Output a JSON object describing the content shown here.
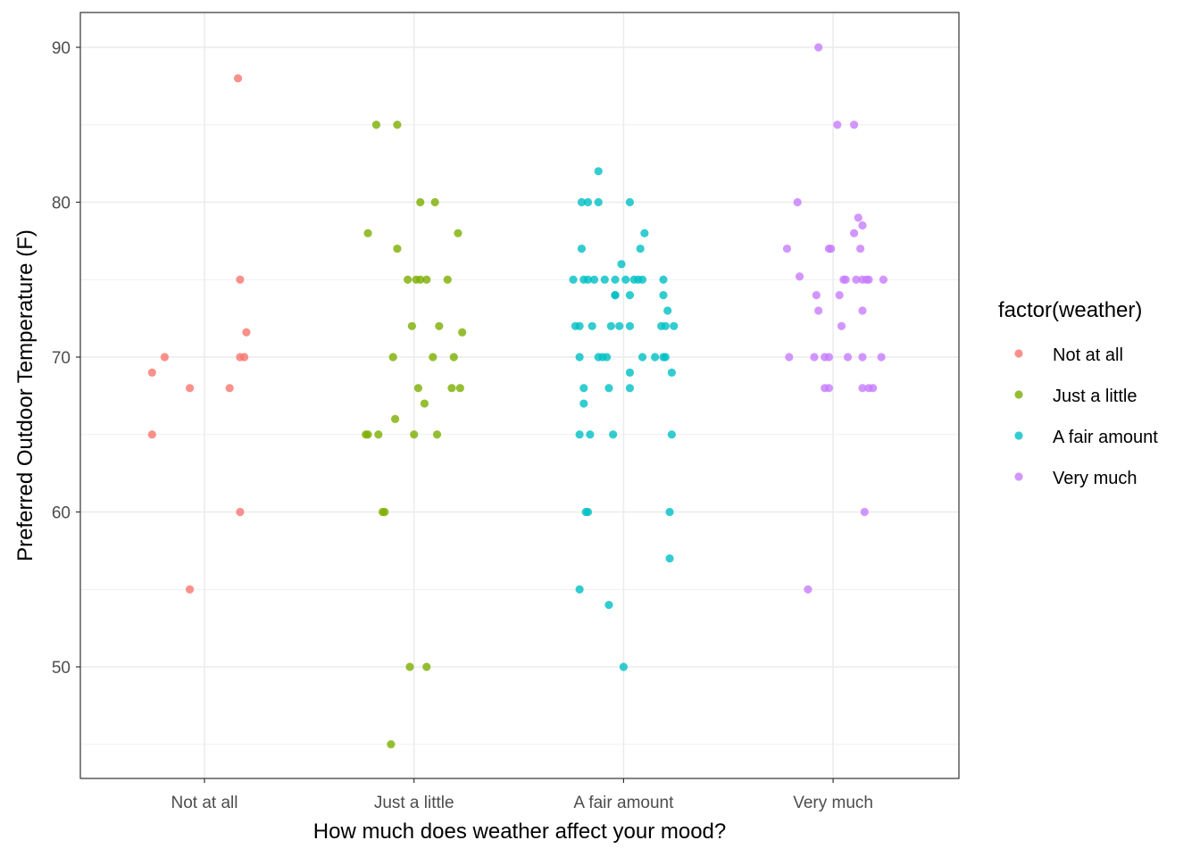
{
  "chart_data": {
    "type": "scatter",
    "subtype": "jitter",
    "title": "",
    "xlabel": "How much does weather affect your mood?",
    "ylabel": "Preferred Outdoor Temperature (F)",
    "categories": [
      "Not at all",
      "Just a little",
      "A fair amount",
      "Very much"
    ],
    "ylim": [
      42.5,
      92.3
    ],
    "yticks": [
      50,
      60,
      70,
      80,
      90
    ],
    "grid": true,
    "legend": {
      "title": "factor(weather)",
      "position": "right",
      "entries": [
        "Not at all",
        "Just a little",
        "A fair amount",
        "Very much"
      ]
    },
    "colors": {
      "Not at all": "#F8766D",
      "Just a little": "#7CAE00",
      "A fair amount": "#00BFC4",
      "Very much": "#C77CFF"
    },
    "series": [
      {
        "name": "Not at all",
        "jitter": [
          0.16,
          0.17,
          0.2,
          0.17,
          0.19,
          -0.19,
          -0.25,
          -0.07,
          0.12,
          -0.25,
          0.17,
          -0.07
        ],
        "values": [
          88,
          75,
          71.6,
          70,
          70,
          70,
          69,
          68,
          68,
          65,
          60,
          55
        ]
      },
      {
        "name": "Just a little",
        "jitter": [
          -0.18,
          -0.08,
          0.03,
          0.1,
          -0.22,
          0.21,
          -0.08,
          -0.03,
          0.01,
          0.03,
          0.06,
          0.16,
          -0.01,
          0.12,
          0.23,
          -0.1,
          0.09,
          0.19,
          0.02,
          0.18,
          0.22,
          0.05,
          -0.09,
          -0.23,
          -0.22,
          -0.17,
          0.0,
          0.11,
          -0.15,
          -0.14,
          -0.02,
          0.06,
          -0.11
        ],
        "values": [
          85,
          85,
          80,
          80,
          78,
          78,
          77,
          75,
          75,
          75,
          75,
          75,
          72,
          72,
          71.6,
          70,
          70,
          70,
          68,
          68,
          68,
          67,
          66,
          65,
          65,
          65,
          65,
          65,
          60,
          60,
          50,
          50,
          45
        ]
      },
      {
        "name": "A fair amount",
        "jitter": [
          -0.12,
          -0.2,
          -0.17,
          -0.12,
          0.03,
          0.1,
          -0.2,
          0.08,
          -0.01,
          -0.24,
          -0.19,
          -0.17,
          -0.14,
          -0.09,
          -0.04,
          0.01,
          0.05,
          0.07,
          0.09,
          0.19,
          -0.04,
          -0.04,
          0.03,
          0.19,
          0.21,
          -0.23,
          -0.21,
          -0.15,
          -0.06,
          -0.02,
          0.03,
          0.18,
          0.2,
          0.24,
          -0.21,
          -0.12,
          -0.1,
          -0.08,
          0.09,
          0.15,
          0.19,
          0.2,
          0.03,
          0.23,
          -0.19,
          -0.07,
          0.03,
          -0.19,
          -0.21,
          -0.16,
          -0.05,
          0.23,
          -0.18,
          -0.17,
          0.22,
          0.22,
          -0.21,
          -0.07,
          0.0
        ],
        "values": [
          82,
          80,
          80,
          80,
          80,
          78,
          77,
          77,
          76,
          75,
          75,
          75,
          75,
          75,
          75,
          75,
          75,
          75,
          75,
          75,
          74,
          74,
          74,
          74,
          73,
          72,
          72,
          72,
          72,
          72,
          72,
          72,
          72,
          72,
          70,
          70,
          70,
          70,
          70,
          70,
          70,
          70,
          69,
          69,
          68,
          68,
          68,
          67,
          65,
          65,
          65,
          65,
          60,
          60,
          60,
          57,
          55,
          54,
          50
        ]
      },
      {
        "name": "Very much",
        "jitter": [
          -0.07,
          0.02,
          0.1,
          -0.17,
          0.12,
          0.14,
          0.1,
          -0.22,
          -0.02,
          -0.01,
          0.13,
          -0.16,
          0.05,
          0.06,
          0.11,
          0.14,
          0.16,
          0.17,
          0.24,
          -0.08,
          0.03,
          -0.07,
          0.14,
          0.04,
          -0.21,
          -0.09,
          -0.04,
          -0.02,
          0.07,
          0.14,
          0.23,
          -0.04,
          -0.02,
          0.14,
          0.17,
          0.19,
          0.15,
          -0.12
        ],
        "values": [
          90,
          85,
          85,
          80,
          79,
          78.5,
          78,
          77,
          77,
          77,
          77,
          75.2,
          75,
          75,
          75,
          75,
          75,
          75,
          75,
          74,
          74,
          73,
          73,
          72,
          70,
          70,
          70,
          70,
          70,
          70,
          70,
          68,
          68,
          68,
          68,
          68,
          60,
          55
        ]
      }
    ]
  }
}
